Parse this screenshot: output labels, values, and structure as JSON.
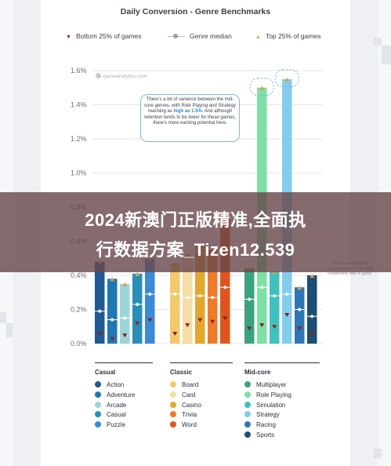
{
  "chart_data": {
    "type": "bar",
    "title": "Daily Conversion - Genre Benchmarks",
    "ylim": [
      0,
      1.6
    ],
    "yticks": [
      "0.0%",
      "0.2%",
      "0.4%",
      "0.6%",
      "0.8%",
      "1.0%",
      "1.2%",
      "1.4%",
      "1.6%"
    ],
    "legend": {
      "bottom": "Bottom 25% of games",
      "median": "Genre median",
      "top": "Top 25% of games"
    },
    "markers": {
      "bottom": "▼",
      "top": "▲"
    },
    "groups": [
      {
        "name": "Casual",
        "items": [
          {
            "genre": "Action",
            "color": "#1f5a93",
            "top": 0.48,
            "median": 0.19,
            "bottom": 0.06
          },
          {
            "genre": "Adventure",
            "color": "#1f77b4",
            "top": 0.38,
            "median": 0.14,
            "bottom": 0.03
          },
          {
            "genre": "Arcade",
            "color": "#9ad6d8",
            "top": 0.35,
            "median": 0.15,
            "bottom": 0.05
          },
          {
            "genre": "Casual",
            "color": "#2a8fb7",
            "top": 0.41,
            "median": 0.23,
            "bottom": 0.12
          },
          {
            "genre": "Puzzle",
            "color": "#3a8ad4",
            "top": 0.5,
            "median": 0.29,
            "bottom": 0.14
          }
        ]
      },
      {
        "name": "Classic",
        "items": [
          {
            "genre": "Board",
            "color": "#f2c96b",
            "top": 0.47,
            "median": 0.29,
            "bottom": 0.06
          },
          {
            "genre": "Card",
            "color": "#f6dca6",
            "top": 0.52,
            "median": 0.27,
            "bottom": 0.11
          },
          {
            "genre": "Casino",
            "color": "#e2a72d",
            "top": 0.58,
            "median": 0.28,
            "bottom": 0.14
          },
          {
            "genre": "Trivia",
            "color": "#ef7a2c",
            "top": 0.55,
            "median": 0.27,
            "bottom": 0.13
          },
          {
            "genre": "Word",
            "color": "#e0541c",
            "top": 0.75,
            "median": 0.33,
            "bottom": 0.15
          }
        ]
      },
      {
        "name": "Mid-core",
        "items": [
          {
            "genre": "Multiplayer",
            "color": "#3aa37c",
            "top": 0.44,
            "median": 0.26,
            "bottom": 0.09
          },
          {
            "genre": "Role Playing",
            "color": "#7ee0a6",
            "top": 1.5,
            "median": 0.33,
            "bottom": 0.11
          },
          {
            "genre": "Simulation",
            "color": "#3fc2be",
            "top": 0.42,
            "median": 0.28,
            "bottom": 0.1
          },
          {
            "genre": "Strategy",
            "color": "#83cdec",
            "top": 1.55,
            "median": 0.29,
            "bottom": 0.17
          },
          {
            "genre": "Racing",
            "color": "#2e77b5",
            "top": 0.33,
            "median": 0.2,
            "bottom": 0.09
          },
          {
            "genre": "Sports",
            "color": "#1d4e73",
            "top": 0.4,
            "median": 0.16,
            "bottom": 0.06
          }
        ]
      }
    ]
  },
  "watermark": "gameanalytics.com",
  "annotation": {
    "part1": "There's a bit of variance between the mid-core genres, with Role Playing and Strategy reaching as",
    "highlight": "high as 1.5%",
    "part2": ". And although retention tends to be lower for these games, there's more earning potential here."
  },
  "side_note": "…but for most genres, having over a 0.5% daily conversion rate is good",
  "banner": {
    "line1": "2024新澳门正版精准,全面执",
    "line2": "行数据方案_Tizen12.539"
  }
}
